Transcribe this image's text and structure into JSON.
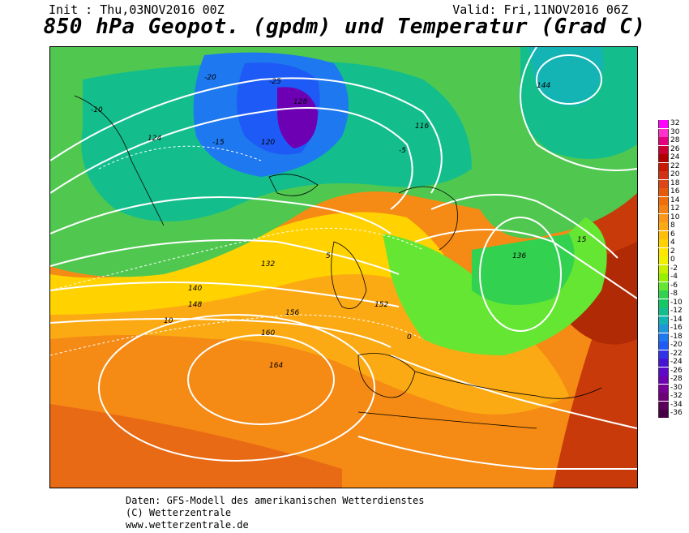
{
  "header": {
    "init": "Init : Thu,03NOV2016 00Z",
    "valid": "Valid: Fri,11NOV2016 06Z",
    "title": "850 hPa Geopot. (gpdm) und Temperatur (Grad C)"
  },
  "legend": {
    "values": [
      "32",
      "30",
      "28",
      "26",
      "24",
      "22",
      "20",
      "18",
      "16",
      "14",
      "12",
      "10",
      "8",
      "6",
      "4",
      "2",
      "0",
      "-2",
      "-4",
      "-6",
      "-8",
      "-10",
      "-12",
      "-14",
      "-16",
      "-18",
      "-20",
      "-22",
      "-24",
      "-26",
      "-28",
      "-30",
      "-32",
      "-34",
      "-36"
    ],
    "colors": [
      "#ff00ff",
      "#ff33cc",
      "#e6007e",
      "#cc0033",
      "#b00000",
      "#c81a00",
      "#d23214",
      "#dc4614",
      "#e65a0a",
      "#f06e0a",
      "#f58214",
      "#fa9619",
      "#fcaa14",
      "#ffbe0a",
      "#ffd200",
      "#ffe600",
      "#f0f000",
      "#c8f000",
      "#96f000",
      "#64e632",
      "#32d250",
      "#14c864",
      "#14be8c",
      "#14b4b4",
      "#1e96dc",
      "#1e78f0",
      "#1e5af5",
      "#3232e6",
      "#4614d2",
      "#5a0ac8",
      "#6e00b4",
      "#780096",
      "#6e0078",
      "#5a005a",
      "#460046"
    ]
  },
  "map": {
    "height_labels": [
      "124",
      "128",
      "120",
      "116",
      "132",
      "136",
      "140",
      "144",
      "148",
      "152",
      "156",
      "160",
      "164"
    ],
    "temp_labels": [
      "-25",
      "-20",
      "-15",
      "-10",
      "-5",
      "0",
      "5",
      "10",
      "15"
    ]
  },
  "footer": {
    "line1": "Daten: GFS-Modell des amerikanischen Wetterdienstes",
    "line2": "(C) Wetterzentrale",
    "line3": "www.wetterzentrale.de"
  }
}
